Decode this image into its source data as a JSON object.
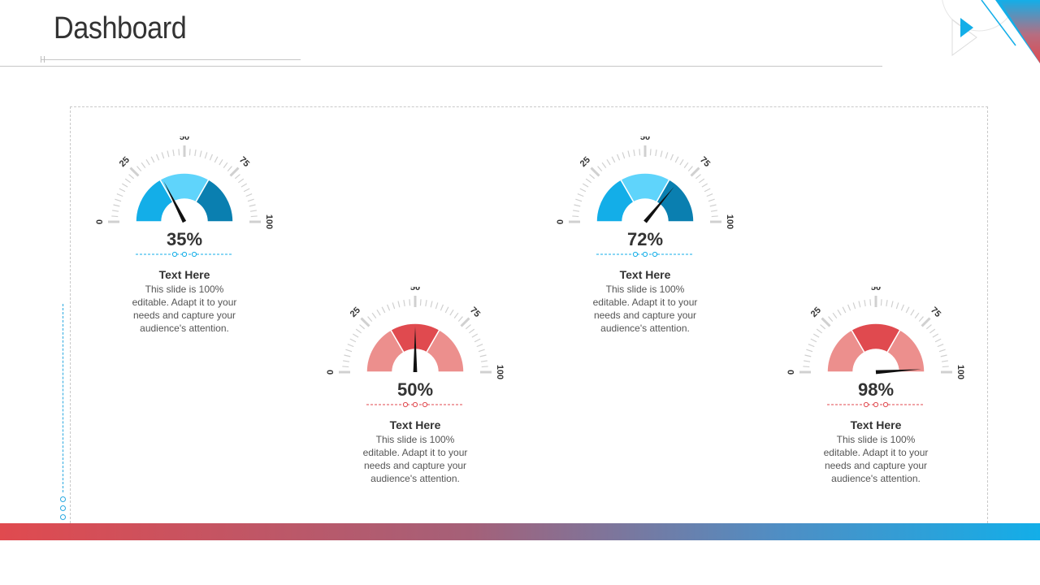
{
  "header": {
    "title": "Dashboard"
  },
  "colors": {
    "blue_dark": "#0a7fb0",
    "blue_mid": "#13aee8",
    "blue_light": "#5fd4fb",
    "red_dark": "#e04a4f",
    "red_light": "#ec8f8d",
    "needle": "#111111",
    "tick": "#d0d0d0"
  },
  "gauges": [
    {
      "value": 35,
      "value_label": "35%",
      "theme": "blue",
      "scale_labels": [
        "0",
        "25",
        "50",
        "75",
        "100"
      ],
      "heading": "Text Here",
      "description": "This slide is 100% editable. Adapt it to your needs and capture your audience's attention."
    },
    {
      "value": 50,
      "value_label": "50%",
      "theme": "red",
      "scale_labels": [
        "0",
        "25",
        "50",
        "75",
        "100"
      ],
      "heading": "Text Here",
      "description": "This slide is 100% editable. Adapt it to your needs and capture your audience's attention."
    },
    {
      "value": 72,
      "value_label": "72%",
      "theme": "blue",
      "scale_labels": [
        "0",
        "25",
        "50",
        "75",
        "100"
      ],
      "heading": "Text Here",
      "description": "This slide is 100% editable. Adapt it to your needs and capture your audience's attention."
    },
    {
      "value": 98,
      "value_label": "98%",
      "theme": "red",
      "scale_labels": [
        "0",
        "25",
        "50",
        "75",
        "100"
      ],
      "heading": "Text Here",
      "description": "This slide is 100% editable. Adapt it to your needs and capture your audience's attention."
    }
  ]
}
